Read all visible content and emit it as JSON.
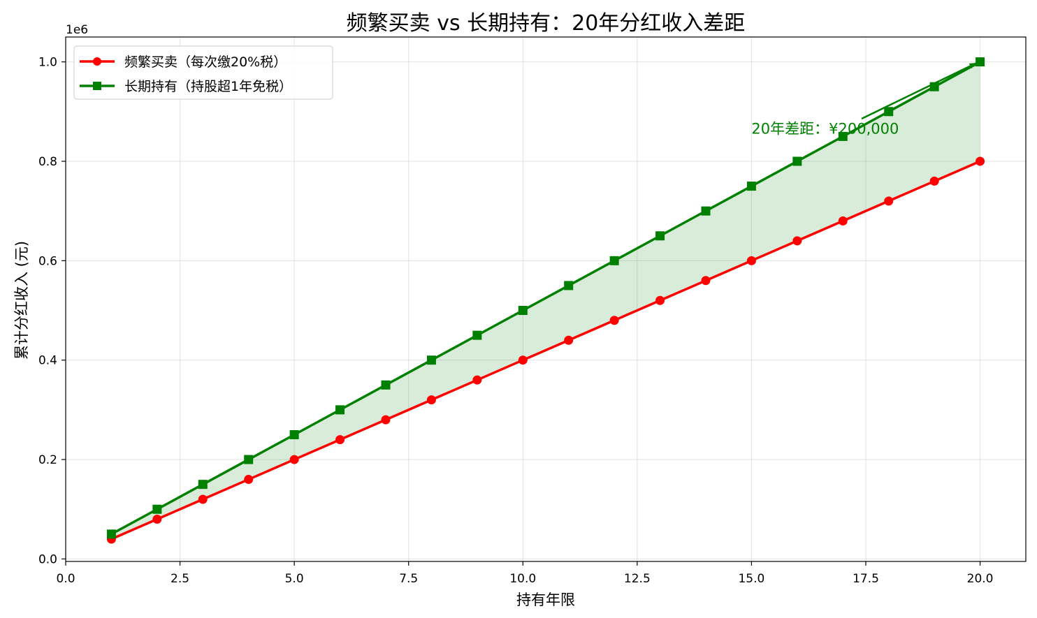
{
  "chart_data": {
    "type": "line",
    "title": "频繁买卖 vs 长期持有：20年分红收入差距",
    "xlabel": "持有年限",
    "ylabel": "累计分红收入 (元)",
    "y_offset_text": "1e6",
    "xlim": [
      0,
      21
    ],
    "ylim": [
      -5000,
      1050000
    ],
    "grid": true,
    "legend_position": "upper-left",
    "x_ticks": [
      0,
      2.5,
      5,
      7.5,
      10,
      12.5,
      15,
      17.5,
      20
    ],
    "x_tick_labels": [
      "0.0",
      "2.5",
      "5.0",
      "7.5",
      "10.0",
      "12.5",
      "15.0",
      "17.5",
      "20.0"
    ],
    "y_ticks": [
      0,
      200000,
      400000,
      600000,
      800000,
      1000000
    ],
    "y_tick_labels": [
      "0.0",
      "0.2",
      "0.4",
      "0.6",
      "0.8",
      "1.0"
    ],
    "x": [
      1,
      2,
      3,
      4,
      5,
      6,
      7,
      8,
      9,
      10,
      11,
      12,
      13,
      14,
      15,
      16,
      17,
      18,
      19,
      20
    ],
    "series": [
      {
        "name": "频繁买卖（每次缴20%税）",
        "color": "#ff0000",
        "marker": "circle",
        "values": [
          40000,
          80000,
          120000,
          160000,
          200000,
          240000,
          280000,
          320000,
          360000,
          400000,
          440000,
          480000,
          520000,
          560000,
          600000,
          640000,
          680000,
          720000,
          760000,
          800000
        ]
      },
      {
        "name": "长期持有（持股超1年免税）",
        "color": "#008000",
        "marker": "square",
        "values": [
          50000,
          100000,
          150000,
          200000,
          250000,
          300000,
          350000,
          400000,
          450000,
          500000,
          550000,
          600000,
          650000,
          700000,
          750000,
          800000,
          850000,
          900000,
          950000,
          1000000
        ]
      }
    ],
    "fill_between": {
      "color": "#008000",
      "opacity": 0.15
    },
    "annotation": {
      "text": "20年差距：¥200,000",
      "color": "#008000",
      "text_x": 15,
      "text_y": 850000,
      "arrow_to_x": 20,
      "arrow_to_y": 1000000
    }
  }
}
